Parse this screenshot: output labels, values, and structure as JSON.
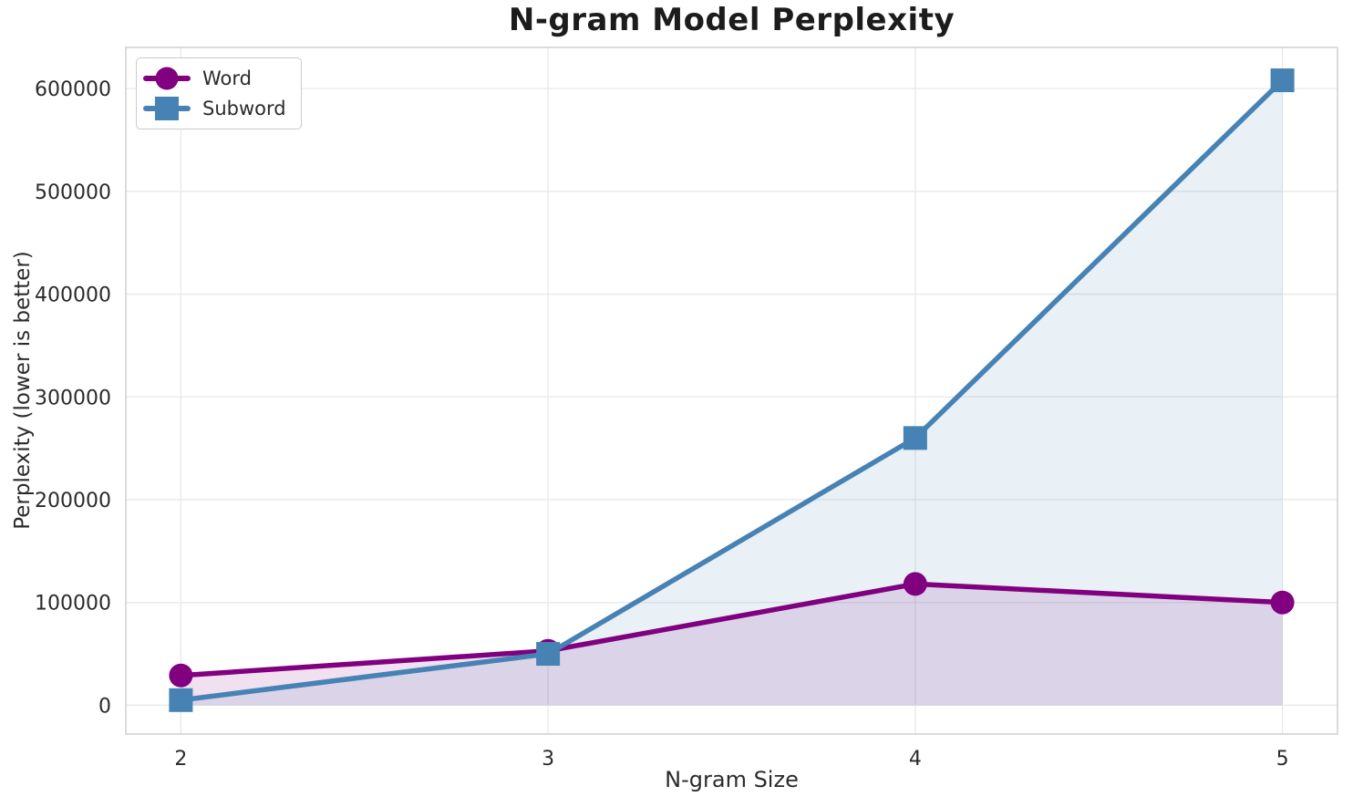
{
  "chart_data": {
    "type": "line",
    "title": "N-gram Model Perplexity",
    "xlabel": "N-gram Size",
    "ylabel": "Perplexity (lower is better)",
    "x": [
      2,
      3,
      4,
      5
    ],
    "series": [
      {
        "name": "Word",
        "color": "#800080",
        "marker": "circle",
        "values": [
          29000,
          53000,
          118000,
          100000
        ]
      },
      {
        "name": "Subword",
        "color": "#4682B4",
        "marker": "square",
        "values": [
          5000,
          50000,
          260000,
          608000
        ]
      }
    ],
    "xticks": [
      "2",
      "3",
      "4",
      "5"
    ],
    "xtick_values": [
      2,
      3,
      4,
      5
    ],
    "yticks": [
      "0",
      "100000",
      "200000",
      "300000",
      "400000",
      "500000",
      "600000"
    ],
    "ytick_values": [
      0,
      100000,
      200000,
      300000,
      400000,
      500000,
      600000
    ],
    "xlim": [
      1.85,
      5.15
    ],
    "ylim": [
      -28000,
      640000
    ],
    "grid": true,
    "legend_position": "upper-left",
    "area_fill": true,
    "area_fill_opacity": 0.12,
    "baseline": 0
  },
  "style": {
    "grid_color": "#e8e8e8",
    "spine_color": "#d2d2d2",
    "tick_text_color": "#2b2b2b",
    "title_color": "#1c1c1c",
    "background": "#ffffff"
  }
}
